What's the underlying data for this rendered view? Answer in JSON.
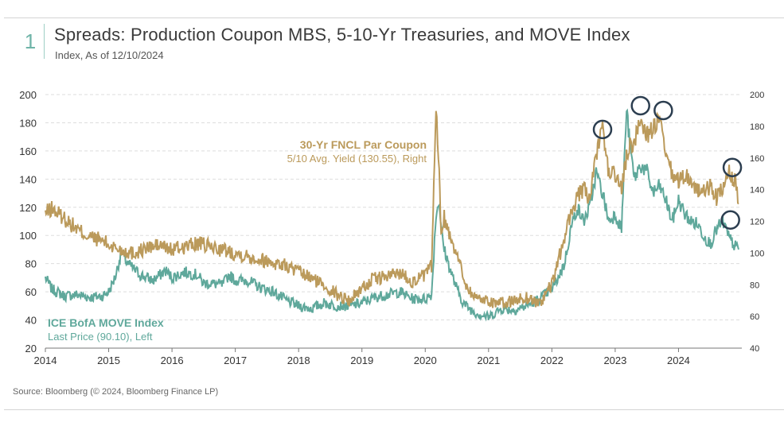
{
  "header": {
    "number": "1",
    "title": "Spreads: Production Coupon MBS, 5-10-Yr Treasuries, and MOVE Index",
    "subtitle": "Index, As of 12/10/2024"
  },
  "footer": {
    "source": "Source: Bloomberg (© 2024, Bloomberg Finance LP)"
  },
  "colors": {
    "move": "#5fa89b",
    "fncl": "#bb9a5b",
    "circle": "#2c3e50",
    "grid": "#dddddd"
  },
  "chart_data": {
    "type": "line",
    "title": "Spreads: Production Coupon MBS, 5-10-Yr Treasuries, and MOVE Index",
    "x_ticks": [
      "2014",
      "2015",
      "2016",
      "2017",
      "2018",
      "2019",
      "2020",
      "2021",
      "2022",
      "2023",
      "2024"
    ],
    "x_range": [
      2014.0,
      2025.0
    ],
    "y_left": {
      "ticks": [
        "200",
        "180",
        "160",
        "140",
        "120",
        "100",
        "80",
        "60",
        "40",
        "20"
      ],
      "range": [
        20,
        200
      ]
    },
    "y_right": {
      "ticks": [
        "200",
        "180",
        "160",
        "140",
        "120",
        "100",
        "80",
        "60",
        "40"
      ],
      "range": [
        40,
        200
      ]
    },
    "grid": true,
    "series": [
      {
        "name": "ICE BofA MOVE Index",
        "detail": "Last Price (90.10), Left",
        "axis": "left",
        "color": "#5fa89b",
        "x": [
          2014.0,
          2014.1,
          2014.3,
          2014.5,
          2014.7,
          2014.9,
          2015.0,
          2015.1,
          2015.2,
          2015.3,
          2015.5,
          2015.7,
          2015.9,
          2016.0,
          2016.2,
          2016.4,
          2016.5,
          2016.6,
          2016.8,
          2016.9,
          2017.0,
          2017.2,
          2017.4,
          2017.6,
          2017.8,
          2018.0,
          2018.2,
          2018.4,
          2018.6,
          2018.8,
          2019.0,
          2019.2,
          2019.4,
          2019.6,
          2019.8,
          2020.0,
          2020.1,
          2020.17,
          2020.22,
          2020.25,
          2020.3,
          2020.4,
          2020.5,
          2020.6,
          2020.7,
          2020.8,
          2021.0,
          2021.2,
          2021.4,
          2021.6,
          2021.8,
          2022.0,
          2022.1,
          2022.2,
          2022.3,
          2022.4,
          2022.5,
          2022.6,
          2022.7,
          2022.8,
          2022.9,
          2023.0,
          2023.1,
          2023.18,
          2023.22,
          2023.3,
          2023.4,
          2023.5,
          2023.6,
          2023.7,
          2023.8,
          2023.9,
          2024.0,
          2024.1,
          2024.2,
          2024.3,
          2024.4,
          2024.5,
          2024.6,
          2024.7,
          2024.8,
          2024.9,
          2024.95
        ],
        "values": [
          70,
          62,
          57,
          58,
          56,
          57,
          60,
          70,
          88,
          80,
          72,
          68,
          75,
          70,
          74,
          72,
          66,
          66,
          65,
          72,
          68,
          68,
          63,
          60,
          54,
          50,
          48,
          52,
          50,
          50,
          52,
          56,
          58,
          60,
          55,
          55,
          58,
          115,
          125,
          105,
          90,
          75,
          62,
          52,
          48,
          45,
          42,
          48,
          47,
          50,
          55,
          62,
          70,
          80,
          105,
          120,
          110,
          120,
          145,
          130,
          110,
          115,
          105,
          190,
          170,
          140,
          150,
          145,
          130,
          135,
          125,
          110,
          125,
          115,
          110,
          108,
          100,
          94,
          104,
          110,
          98,
          92,
          90
        ]
      },
      {
        "name": "30-Yr FNCL Par Coupon",
        "detail": "5/10 Avg. Yield (130.55), Right",
        "axis": "right",
        "color": "#bb9a5b",
        "x": [
          2014.0,
          2014.1,
          2014.3,
          2014.5,
          2014.7,
          2014.9,
          2015.0,
          2015.2,
          2015.4,
          2015.6,
          2015.8,
          2016.0,
          2016.2,
          2016.4,
          2016.6,
          2016.8,
          2017.0,
          2017.2,
          2017.4,
          2017.6,
          2017.8,
          2018.0,
          2018.2,
          2018.4,
          2018.6,
          2018.8,
          2019.0,
          2019.2,
          2019.4,
          2019.6,
          2019.8,
          2020.0,
          2020.1,
          2020.17,
          2020.22,
          2020.25,
          2020.3,
          2020.4,
          2020.5,
          2020.6,
          2020.7,
          2020.8,
          2021.0,
          2021.2,
          2021.4,
          2021.6,
          2021.8,
          2022.0,
          2022.1,
          2022.2,
          2022.3,
          2022.4,
          2022.5,
          2022.6,
          2022.7,
          2022.8,
          2022.9,
          2023.0,
          2023.1,
          2023.2,
          2023.3,
          2023.4,
          2023.5,
          2023.6,
          2023.7,
          2023.8,
          2023.9,
          2024.0,
          2024.1,
          2024.2,
          2024.3,
          2024.4,
          2024.5,
          2024.6,
          2024.7,
          2024.8,
          2024.9,
          2024.95
        ],
        "values": [
          125,
          128,
          122,
          115,
          110,
          108,
          105,
          102,
          100,
          103,
          105,
          102,
          104,
          106,
          104,
          102,
          100,
          98,
          96,
          94,
          92,
          88,
          84,
          80,
          74,
          70,
          78,
          84,
          85,
          88,
          82,
          86,
          92,
          190,
          150,
          115,
          122,
          110,
          100,
          85,
          76,
          72,
          70,
          68,
          70,
          72,
          68,
          80,
          95,
          110,
          125,
          135,
          140,
          135,
          160,
          180,
          150,
          150,
          140,
          165,
          170,
          185,
          175,
          178,
          185,
          160,
          150,
          145,
          150,
          145,
          140,
          138,
          142,
          135,
          140,
          150,
          145,
          131
        ]
      }
    ],
    "annotations": [
      {
        "label": "30-Yr FNCL Par Coupon",
        "sub": "5/10 Avg. Yield (130.55), Right"
      },
      {
        "label": "ICE BofA MOVE Index",
        "sub": "Last Price (90.10), Left"
      }
    ],
    "highlight_circles": [
      {
        "x": 2022.8,
        "axis": "right",
        "y": 178
      },
      {
        "x": 2023.4,
        "axis": "right",
        "y": 193
      },
      {
        "x": 2023.76,
        "axis": "right",
        "y": 190
      },
      {
        "x": 2024.85,
        "axis": "right",
        "y": 154
      },
      {
        "x": 2024.82,
        "axis": "left",
        "y": 111
      }
    ]
  }
}
